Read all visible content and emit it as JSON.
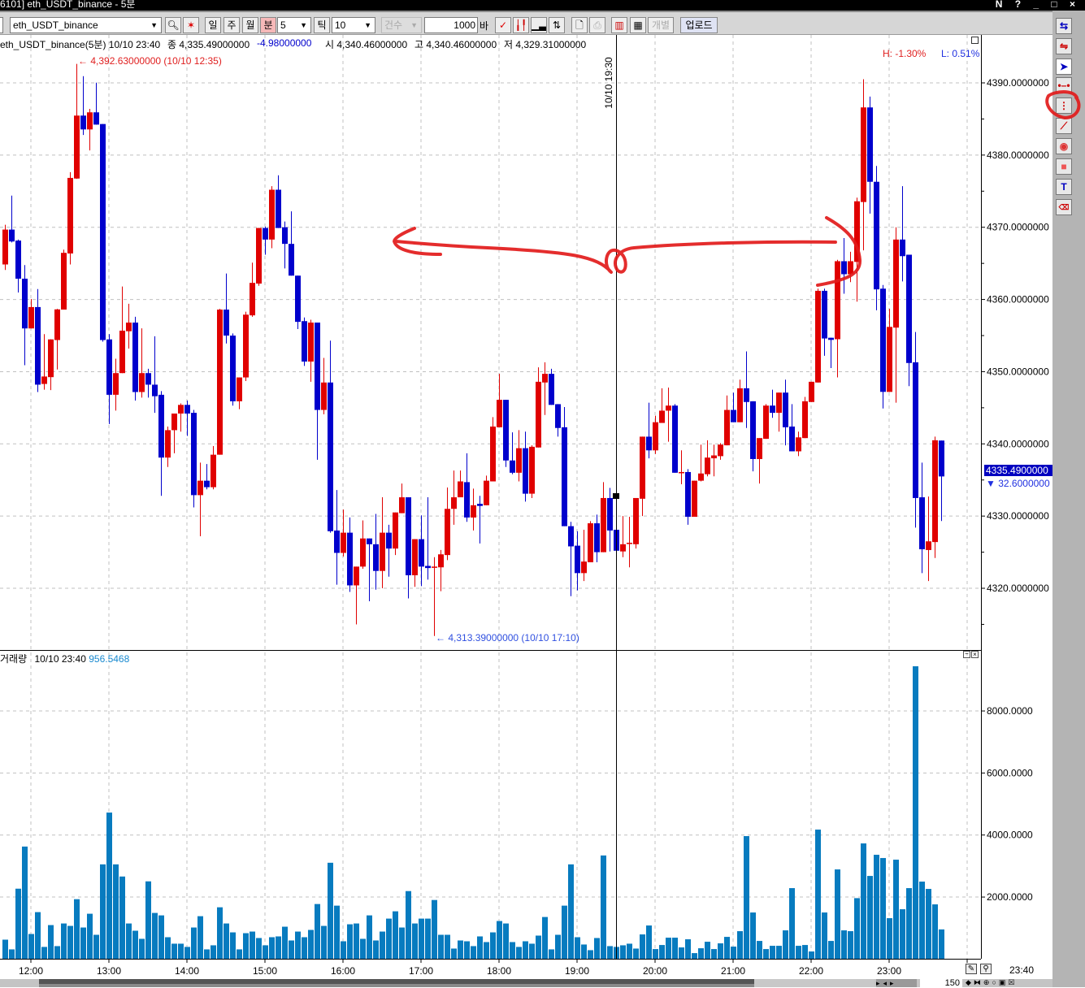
{
  "window": {
    "title": "6101] eth_USDT_binance - 5분",
    "controls": "N ? _ □ ×"
  },
  "toolbar": {
    "symbol": "eth_USDT_binance",
    "period_day": "일",
    "period_week": "주",
    "period_month": "월",
    "period_minute": "분",
    "minute_value": "5",
    "tick_label": "틱",
    "tick_value": "10",
    "count_mode": "건수",
    "bar_count": "1000",
    "bar_unit": "바",
    "individual": "개별",
    "upload": "업로드",
    "active_period": "분"
  },
  "info": {
    "symbol_period": "eth_USDT_binance(5분) 10/10 23:40",
    "close": "종 4,335.49000000",
    "change": "-4.98000000",
    "open": "시 4,340.46000000",
    "high": "고 4,340.46000000",
    "low": "저 4,329.31000000",
    "hl_high": "H: -1.30%",
    "hl_low": "L: 0.51%",
    "max_marker": "4,392.63000000 (10/10 12:35)",
    "min_marker": "4,313.39000000 (10/10 17:10)",
    "crosshair_time": "10/10 19:30"
  },
  "volume_header": {
    "label": "거래량",
    "time": "10/10 23:40",
    "value": "956.5468"
  },
  "price_axis": {
    "labels": [
      "4390.0000000",
      "4380.0000000",
      "4370.0000000",
      "4360.0000000",
      "4350.0000000",
      "4340.0000000",
      "4330.0000000",
      "4320.0000000"
    ],
    "current": "4335.4900000",
    "diff": "32.6000000"
  },
  "volume_axis": {
    "labels": [
      "8000.0000",
      "6000.0000",
      "4000.0000",
      "2000.0000"
    ]
  },
  "time_axis": {
    "labels": [
      "12:00",
      "13:00",
      "14:00",
      "15:00",
      "16:00",
      "17:00",
      "18:00",
      "19:00",
      "20:00",
      "21:00",
      "22:00",
      "23:00"
    ],
    "last": "23:40"
  },
  "bottom": {
    "zoom_count": "150"
  },
  "colors": {
    "up": "#e00000",
    "down": "#0000cc",
    "volume": "#077bbf",
    "annotation": "#e21b1b",
    "current_bg": "#0000c0"
  },
  "right_tools": [
    "refresh-icon",
    "compare-icon",
    "pointer-icon",
    "horizontal-line-icon",
    "vertical-line-icon",
    "trend-line-icon",
    "circle-icon",
    "rectangle-icon",
    "text-icon",
    "erase-all-icon"
  ],
  "chart_data": {
    "type": "candlestick",
    "interval": "5분",
    "ylim": [
      4310,
      4394
    ],
    "volume_ylim": [
      0,
      9900
    ],
    "columns": [
      "time",
      "open",
      "high",
      "low",
      "close",
      "volume"
    ],
    "candles": [
      [
        "11:40",
        4364.85,
        4370.35,
        4364.09,
        4369.68,
        626
      ],
      [
        "11:45",
        4369.68,
        4374.38,
        4367.9,
        4368.03,
        313
      ],
      [
        "11:50",
        4368.16,
        4368.3,
        4360.96,
        4362.88,
        2270
      ],
      [
        "11:55",
        4362.88,
        4364.76,
        4350.9,
        4355.99,
        3628
      ],
      [
        "12:00",
        4355.99,
        4360.06,
        4355.99,
        4358.95,
        809
      ],
      [
        "12:05",
        4358.95,
        4361.45,
        4347.18,
        4348.2,
        1514
      ],
      [
        "12:10",
        4348.3,
        4355.2,
        4347.5,
        4349.33,
        392
      ],
      [
        "12:15",
        4349.24,
        4354.5,
        4347.45,
        4354.47,
        1096
      ],
      [
        "12:20",
        4354.38,
        4358.7,
        4350.3,
        4358.63,
        418
      ],
      [
        "12:25",
        4358.6,
        4366.9,
        4358.6,
        4366.46,
        1148
      ],
      [
        "12:30",
        4366.37,
        4377.64,
        4364.85,
        4376.84,
        1070
      ],
      [
        "12:35",
        4376.75,
        4392.63,
        4376.7,
        4385.47,
        1931
      ],
      [
        "12:40",
        4385.47,
        4390.93,
        4382.79,
        4383.55,
        1018
      ],
      [
        "12:45",
        4383.55,
        4386.4,
        4380.64,
        4385.92,
        1462
      ],
      [
        "12:50",
        4385.92,
        4390.03,
        4384.2,
        4384.22,
        783
      ],
      [
        "12:55",
        4384.3,
        4384.3,
        4354.16,
        4354.38,
        3054
      ],
      [
        "13:00",
        4354.47,
        4355.2,
        4342.75,
        4346.8,
        4724
      ],
      [
        "13:05",
        4346.8,
        4351.8,
        4344.6,
        4349.8,
        3054
      ],
      [
        "13:10",
        4349.8,
        4361.8,
        4349.8,
        4355.68,
        2662
      ],
      [
        "13:15",
        4355.6,
        4359.4,
        4353.2,
        4356.8,
        1148
      ],
      [
        "13:20",
        4356.8,
        4357.6,
        4346.0,
        4347.18,
        914
      ],
      [
        "13:25",
        4347.18,
        4356.0,
        4346.4,
        4349.8,
        653
      ],
      [
        "13:30",
        4349.8,
        4350.4,
        4346.4,
        4348.2,
        2506
      ],
      [
        "13:35",
        4348.2,
        4354.9,
        4344.3,
        4346.6,
        1488
      ],
      [
        "13:40",
        4346.8,
        4347.3,
        4332.8,
        4338.1,
        1409
      ],
      [
        "13:45",
        4338.1,
        4342.4,
        4336.8,
        4341.9,
        705
      ],
      [
        "13:50",
        4341.9,
        4344.2,
        4338.7,
        4344.2,
        496
      ],
      [
        "13:55",
        4344.2,
        4345.6,
        4341.7,
        4345.4,
        496
      ],
      [
        "14:00",
        4345.4,
        4346.0,
        4341.1,
        4344.2,
        392
      ],
      [
        "14:05",
        4344.3,
        4344.7,
        4331.2,
        4332.9,
        1018
      ],
      [
        "14:10",
        4332.9,
        4337.4,
        4327.2,
        4334.9,
        1383
      ],
      [
        "14:15",
        4334.9,
        4337.2,
        4333.7,
        4334.0,
        313
      ],
      [
        "14:20",
        4334.0,
        4339.7,
        4333.7,
        4338.5,
        444
      ],
      [
        "14:25",
        4338.5,
        4358.7,
        4338.5,
        4358.6,
        1670
      ],
      [
        "14:30",
        4358.6,
        4363.6,
        4353.9,
        4355.0,
        1148
      ],
      [
        "14:35",
        4355.0,
        4355.3,
        4345.3,
        4345.9,
        861
      ],
      [
        "14:40",
        4345.9,
        4349.2,
        4344.8,
        4349.2,
        313
      ],
      [
        "14:45",
        4349.2,
        4358.3,
        4348.7,
        4357.9,
        835
      ],
      [
        "14:50",
        4357.8,
        4365.1,
        4357.6,
        4362.3,
        887
      ],
      [
        "14:55",
        4362.2,
        4369.9,
        4361.9,
        4369.9,
        679
      ],
      [
        "15:00",
        4369.9,
        4370.1,
        4366.2,
        4368.3,
        444
      ],
      [
        "15:05",
        4368.3,
        4375.7,
        4367.1,
        4375.2,
        705
      ],
      [
        "15:10",
        4375.2,
        4377.2,
        4369.9,
        4369.9,
        731
      ],
      [
        "15:15",
        4370.0,
        4370.8,
        4364.3,
        4367.7,
        1044
      ],
      [
        "15:20",
        4367.7,
        4372.2,
        4363.3,
        4363.3,
        600
      ],
      [
        "15:25",
        4363.3,
        4363.3,
        4355.9,
        4356.9,
        887
      ],
      [
        "15:30",
        4357.0,
        4357.5,
        4350.8,
        4351.4,
        705
      ],
      [
        "15:35",
        4351.4,
        4357.2,
        4348.6,
        4356.8,
        940
      ],
      [
        "15:40",
        4356.8,
        4356.8,
        4337.8,
        4344.7,
        1775
      ],
      [
        "15:45",
        4344.7,
        4351.9,
        4344.1,
        4348.5,
        1070
      ],
      [
        "15:50",
        4348.5,
        4354.3,
        4327.7,
        4327.9,
        3106
      ],
      [
        "15:55",
        4328.0,
        4333.6,
        4320.5,
        4324.9,
        1723
      ],
      [
        "16:00",
        4324.9,
        4330.9,
        4324.4,
        4327.7,
        574
      ],
      [
        "16:05",
        4327.7,
        4329.8,
        4319.5,
        4320.4,
        1122
      ],
      [
        "16:10",
        4320.4,
        4323.0,
        4315.0,
        4323.0,
        1148
      ],
      [
        "16:15",
        4323.0,
        4329.4,
        4322.7,
        4326.9,
        653
      ],
      [
        "16:20",
        4326.9,
        4326.9,
        4318.2,
        4326.1,
        1409
      ],
      [
        "16:25",
        4326.1,
        4330.3,
        4319.8,
        4322.4,
        600
      ],
      [
        "16:30",
        4322.4,
        4332.6,
        4320.0,
        4327.7,
        887
      ],
      [
        "16:35",
        4327.7,
        4328.8,
        4321.6,
        4325.5,
        1305
      ],
      [
        "16:40",
        4325.5,
        4330.5,
        4324.6,
        4330.5,
        1540
      ],
      [
        "16:45",
        4330.4,
        4334.5,
        4330.4,
        4332.6,
        1018
      ],
      [
        "16:50",
        4332.6,
        4332.6,
        4318.6,
        4321.8,
        2192
      ],
      [
        "16:55",
        4321.8,
        4326.8,
        4320.2,
        4326.8,
        1148
      ],
      [
        "17:00",
        4326.8,
        4330.1,
        4320.3,
        4323.0,
        1305
      ],
      [
        "17:05",
        4323.1,
        4332.6,
        4321.2,
        4322.8,
        1305
      ],
      [
        "17:10",
        4322.9,
        4324.3,
        4313.39,
        4323.0,
        1905
      ],
      [
        "17:15",
        4322.9,
        4325.3,
        4319.6,
        4324.7,
        783
      ],
      [
        "17:20",
        4324.6,
        4333.96,
        4323.9,
        4331.0,
        783
      ],
      [
        "17:25",
        4331.0,
        4336.3,
        4328.8,
        4332.6,
        339
      ],
      [
        "17:30",
        4332.6,
        4336.3,
        4332.6,
        4334.8,
        600
      ],
      [
        "17:35",
        4334.7,
        4338.7,
        4329.2,
        4329.8,
        574
      ],
      [
        "17:40",
        4329.8,
        4333.8,
        4328.0,
        4331.5,
        418
      ],
      [
        "17:45",
        4331.7,
        4332.8,
        4326.2,
        4331.4,
        731
      ],
      [
        "17:50",
        4331.5,
        4335.6,
        4331.5,
        4334.9,
        548
      ],
      [
        "17:55",
        4334.8,
        4343.7,
        4334.8,
        4342.4,
        861
      ],
      [
        "18:00",
        4342.3,
        4349.7,
        4342.3,
        4346.1,
        1227
      ],
      [
        "18:05",
        4346.1,
        4346.1,
        4336.8,
        4337.7,
        1148
      ],
      [
        "18:10",
        4337.7,
        4341.6,
        4335.8,
        4336.0,
        548
      ],
      [
        "18:15",
        4336.0,
        4341.9,
        4334.8,
        4339.4,
        392
      ],
      [
        "18:20",
        4339.4,
        4341.7,
        4332.0,
        4333.1,
        574
      ],
      [
        "18:25",
        4333.1,
        4339.8,
        4332.5,
        4339.6,
        496
      ],
      [
        "18:30",
        4339.5,
        4350.6,
        4339.5,
        4348.6,
        757
      ],
      [
        "18:35",
        4348.5,
        4351.3,
        4344.0,
        4349.7,
        1357
      ],
      [
        "18:40",
        4349.7,
        4350.4,
        4345.4,
        4345.4,
        313
      ],
      [
        "18:45",
        4345.5,
        4345.5,
        4341.0,
        4342.2,
        783
      ],
      [
        "18:50",
        4342.3,
        4345.1,
        4328.6,
        4328.6,
        1723
      ],
      [
        "18:55",
        4328.6,
        4329.2,
        4318.9,
        4325.8,
        3054
      ],
      [
        "19:00",
        4325.9,
        4327.9,
        4319.7,
        4322.1,
        705
      ],
      [
        "19:05",
        4322.1,
        4328.1,
        4321.0,
        4323.7,
        470
      ],
      [
        "19:10",
        4323.6,
        4329.3,
        4323.6,
        4329.0,
        287
      ],
      [
        "19:15",
        4329.0,
        4330.2,
        4323.6,
        4325.0,
        679
      ],
      [
        "19:20",
        4325.0,
        4334.7,
        4325.0,
        4332.5,
        3341
      ],
      [
        "19:25",
        4332.5,
        4333.9,
        4325.1,
        4328.0,
        418
      ],
      [
        "19:30",
        4328.1,
        4328.4,
        4324.0,
        4325.2,
        392
      ],
      [
        "19:35",
        4325.1,
        4330.0,
        4324.3,
        4326.1,
        444
      ],
      [
        "19:40",
        4326.2,
        4329.9,
        4322.9,
        4326.3,
        496
      ],
      [
        "19:45",
        4326.1,
        4332.5,
        4325.5,
        4332.5,
        339
      ],
      [
        "19:50",
        4332.4,
        4341.0,
        4330.0,
        4341.0,
        795
      ],
      [
        "19:55",
        4341.0,
        4345.7,
        4338.0,
        4339.1,
        1083
      ],
      [
        "20:00",
        4339.1,
        4343.9,
        4338.6,
        4343.0,
        323
      ],
      [
        "20:05",
        4342.9,
        4347.7,
        4342.9,
        4344.6,
        454
      ],
      [
        "20:10",
        4344.6,
        4347.8,
        4340.3,
        4345.3,
        690
      ],
      [
        "20:15",
        4345.3,
        4345.5,
        4336.0,
        4336.0,
        690
      ],
      [
        "20:20",
        4336.0,
        4339.1,
        4334.4,
        4336.1,
        376
      ],
      [
        "20:25",
        4336.1,
        4336.5,
        4328.8,
        4329.9,
        638
      ],
      [
        "20:30",
        4329.9,
        4334.9,
        4329.9,
        4334.9,
        192
      ],
      [
        "20:35",
        4334.9,
        4339.9,
        4334.8,
        4335.9,
        349
      ],
      [
        "20:40",
        4335.8,
        4340.5,
        4335.5,
        4338.1,
        559
      ],
      [
        "20:45",
        4338.0,
        4339.9,
        4335.5,
        4338.4,
        323
      ],
      [
        "20:50",
        4338.3,
        4340.1,
        4337.8,
        4339.9,
        507
      ],
      [
        "20:55",
        4339.8,
        4346.7,
        4339.8,
        4344.7,
        716
      ],
      [
        "21:00",
        4344.7,
        4347.1,
        4343.0,
        4343.0,
        402
      ],
      [
        "21:05",
        4343.0,
        4348.9,
        4343.0,
        4347.7,
        900
      ],
      [
        "21:10",
        4347.7,
        4352.8,
        4342.2,
        4345.8,
        3965
      ],
      [
        "21:15",
        4345.9,
        4345.9,
        4336.2,
        4337.9,
        1502
      ],
      [
        "21:20",
        4337.9,
        4340.8,
        4334.5,
        4340.8,
        585
      ],
      [
        "21:25",
        4340.7,
        4345.5,
        4340.7,
        4345.3,
        323
      ],
      [
        "21:30",
        4345.3,
        4347.5,
        4343.6,
        4344.3,
        428
      ],
      [
        "21:35",
        4344.3,
        4347.1,
        4341.7,
        4347.1,
        428
      ],
      [
        "21:40",
        4347.1,
        4348.9,
        4339.8,
        4342.3,
        926
      ],
      [
        "21:45",
        4342.4,
        4345.5,
        4338.97,
        4338.97,
        2288
      ],
      [
        "21:50",
        4338.97,
        4341.7,
        4338.3,
        4340.9,
        428
      ],
      [
        "21:55",
        4340.8,
        4346.5,
        4340.8,
        4345.9,
        454
      ],
      [
        "22:00",
        4345.8,
        4348.6,
        4345.8,
        4348.6,
        245
      ],
      [
        "22:05",
        4348.5,
        4361.5,
        4348.5,
        4361.2,
        4175
      ],
      [
        "22:10",
        4361.2,
        4361.5,
        4352.2,
        4354.6,
        1502
      ],
      [
        "22:15",
        4354.7,
        4354.7,
        4350.5,
        4354.4,
        585
      ],
      [
        "22:20",
        4354.5,
        4365.5,
        4349.2,
        4365.3,
        2891
      ],
      [
        "22:25",
        4365.3,
        4368.5,
        4360.8,
        4363.5,
        926
      ],
      [
        "22:30",
        4363.5,
        4366.6,
        4362.4,
        4365.3,
        900
      ],
      [
        "22:35",
        4365.2,
        4374.1,
        4359.7,
        4373.6,
        1965
      ],
      [
        "22:40",
        4373.5,
        4390.5,
        4366.8,
        4386.6,
        3729
      ],
      [
        "22:45",
        4386.6,
        4388.1,
        4371.9,
        4376.3,
        2681
      ],
      [
        "22:50",
        4376.3,
        4378.5,
        4358.5,
        4361.4,
        3363
      ],
      [
        "22:55",
        4361.5,
        4362.0,
        4344.9,
        4347.2,
        3258
      ],
      [
        "23:00",
        4347.2,
        4358.7,
        4347.2,
        4356.2,
        1319
      ],
      [
        "23:05",
        4356.1,
        4370.0,
        4345.7,
        4368.3,
        3205
      ],
      [
        "23:10",
        4368.3,
        4375.7,
        4362.5,
        4366.0,
        1607
      ],
      [
        "23:15",
        4366.2,
        4366.2,
        4348.0,
        4351.2,
        2288
      ],
      [
        "23:20",
        4351.3,
        4355.5,
        4328.4,
        4332.5,
        9441
      ],
      [
        "23:25",
        4332.6,
        4337.4,
        4322.1,
        4325.4,
        2498
      ],
      [
        "23:30",
        4325.3,
        4332.7,
        4321.0,
        4326.5,
        2262
      ],
      [
        "23:35",
        4326.4,
        4341.0,
        4324.2,
        4340.5,
        1764
      ],
      [
        "23:40",
        4340.46,
        4340.46,
        4329.31,
        4335.49,
        956.5468
      ]
    ]
  }
}
